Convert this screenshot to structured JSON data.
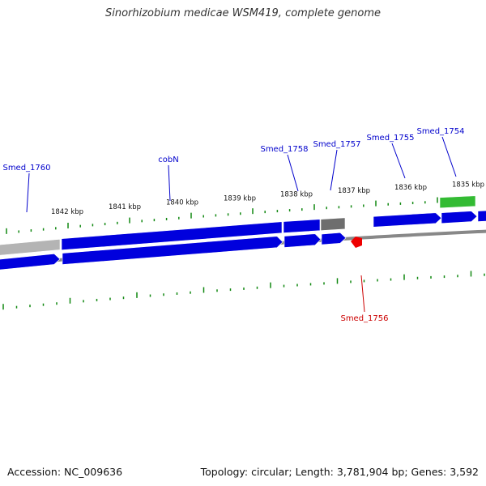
{
  "title": "Sinorhizobium medicae WSM419, complete genome",
  "footer": {
    "accession": "Accession: NC_009636",
    "summary": "Topology: circular; Length: 3,781,904 bp; Genes: 3,592"
  },
  "colors": {
    "gene_forward": "#0000dd",
    "gene_reverse": "#0000dd",
    "pseudo_light": "#b4b4b4",
    "pseudo_dark": "#6e6e6e",
    "rna": "#33bb33",
    "highlight": "#ee0000",
    "backbone": "#888888",
    "tick": "#118811",
    "label_gene": "#0000cc",
    "label_highlight": "#cc0000",
    "label_kbp": "#111111"
  },
  "scale": {
    "labels": [
      {
        "text": "1842 kbp",
        "kbp": 1842
      },
      {
        "text": "1841 kbp",
        "kbp": 1841
      },
      {
        "text": "1840 kbp",
        "kbp": 1840
      },
      {
        "text": "1839 kbp",
        "kbp": 1839
      },
      {
        "text": "1838 kbp",
        "kbp": 1838
      },
      {
        "text": "1837 kbp",
        "kbp": 1837
      },
      {
        "text": "1836 kbp",
        "kbp": 1836
      },
      {
        "text": "1835 kbp",
        "kbp": 1835
      }
    ]
  },
  "gene_labels": [
    {
      "text": "Smed_1760",
      "kind": "gene"
    },
    {
      "text": "cobN",
      "kind": "gene"
    },
    {
      "text": "Smed_1758",
      "kind": "gene"
    },
    {
      "text": "Smed_1757",
      "kind": "gene"
    },
    {
      "text": "Smed_1755",
      "kind": "gene"
    },
    {
      "text": "Smed_1754",
      "kind": "gene"
    },
    {
      "text": "Smed_1756",
      "kind": "highlight"
    }
  ]
}
